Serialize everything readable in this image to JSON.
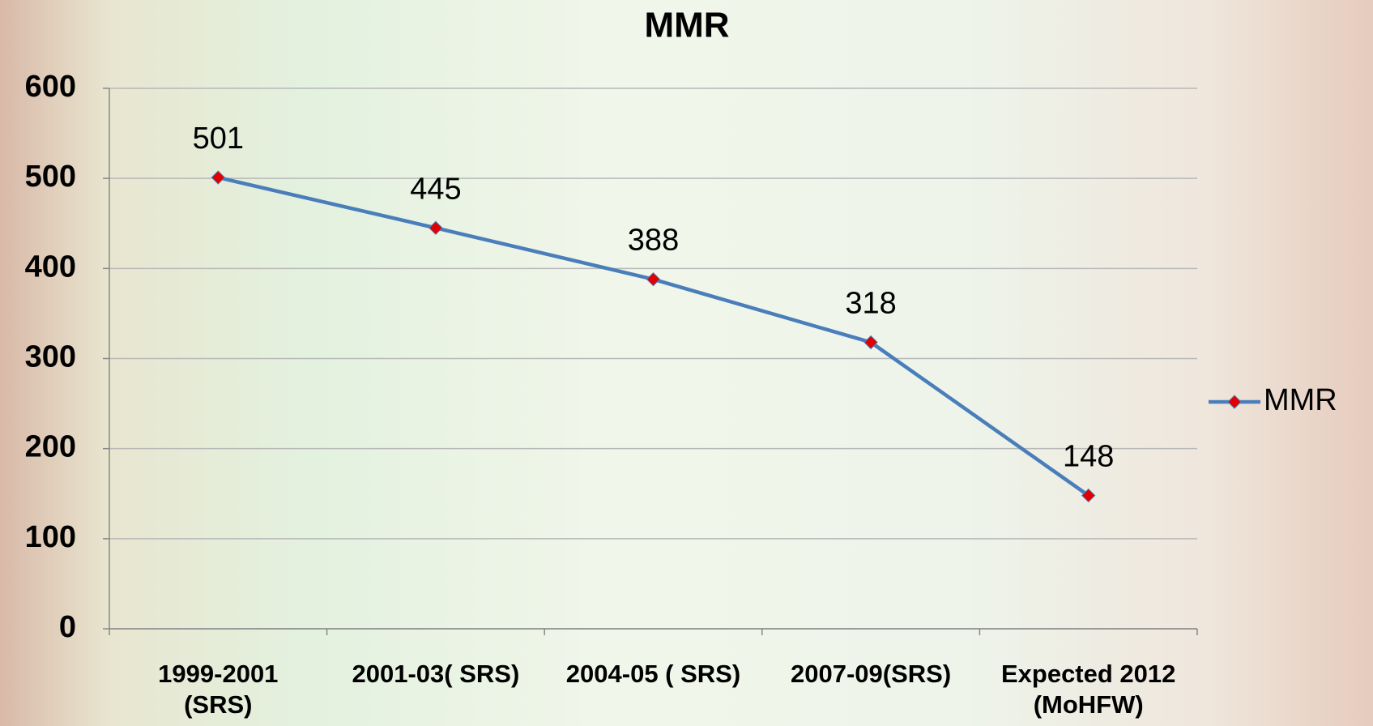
{
  "chart_data": {
    "type": "line",
    "title": "MMR",
    "categories": [
      "1999-2001\n(SRS)",
      "2001-03( SRS)",
      "2004-05 ( SRS)",
      "2007-09(SRS)",
      "Expected 2012\n(MoHFW)"
    ],
    "series": [
      {
        "name": "MMR",
        "color": "#4a7ebb",
        "marker_color": "#e00000",
        "values": [
          501,
          445,
          388,
          318,
          148
        ]
      }
    ],
    "ylim": [
      0,
      600
    ],
    "yticks": [
      0,
      100,
      200,
      300,
      400,
      500,
      600
    ],
    "grid": true,
    "legend": "right"
  }
}
